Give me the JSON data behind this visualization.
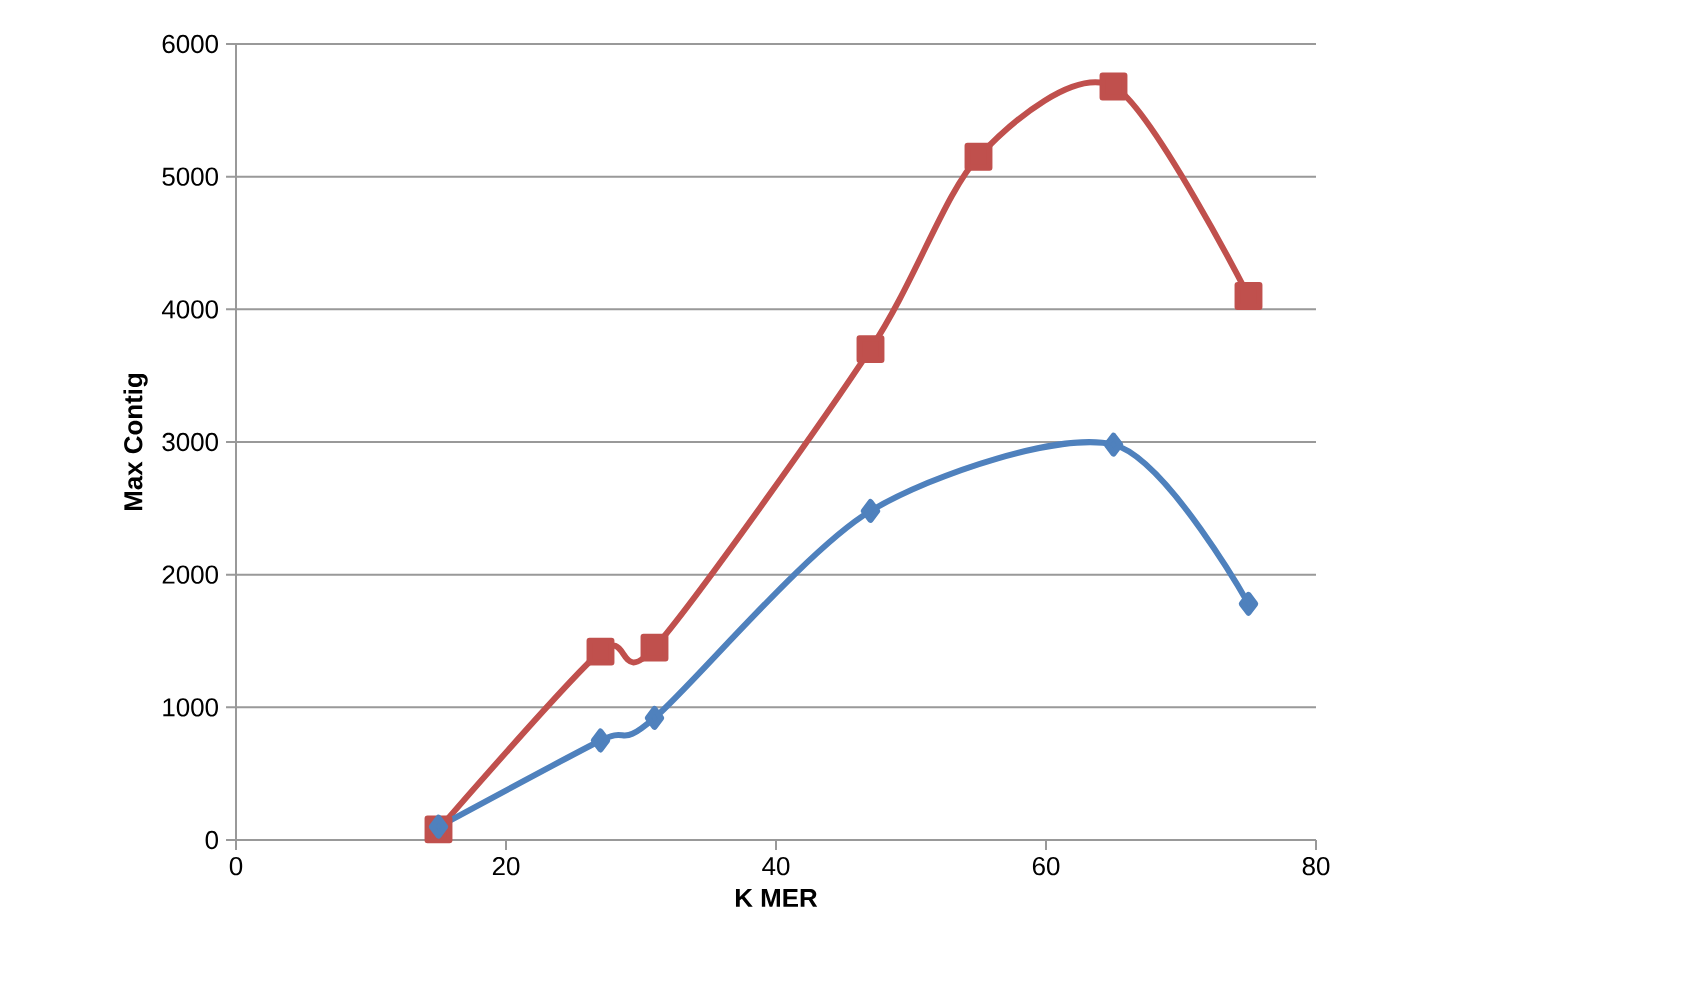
{
  "chart_data": {
    "type": "line",
    "xlabel": "K MER",
    "ylabel": "Max Contig",
    "xlim": [
      0,
      80
    ],
    "xticks": [
      0,
      20,
      40,
      60,
      80
    ],
    "ylim": [
      0,
      6000
    ],
    "yticks": [
      0,
      1000,
      2000,
      3000,
      4000,
      5000,
      6000
    ],
    "grid": "y",
    "series": [
      {
        "color": "#4f81bd",
        "marker": "diamond",
        "x": [
          15,
          27,
          31,
          47,
          65,
          75
        ],
        "values": [
          100,
          750,
          920,
          2480,
          2980,
          1780
        ]
      },
      {
        "color": "#c0504d",
        "marker": "square",
        "x": [
          15,
          27,
          31,
          47,
          55,
          65,
          75
        ],
        "values": [
          80,
          1420,
          1450,
          3700,
          5150,
          5680,
          4100
        ]
      }
    ]
  }
}
